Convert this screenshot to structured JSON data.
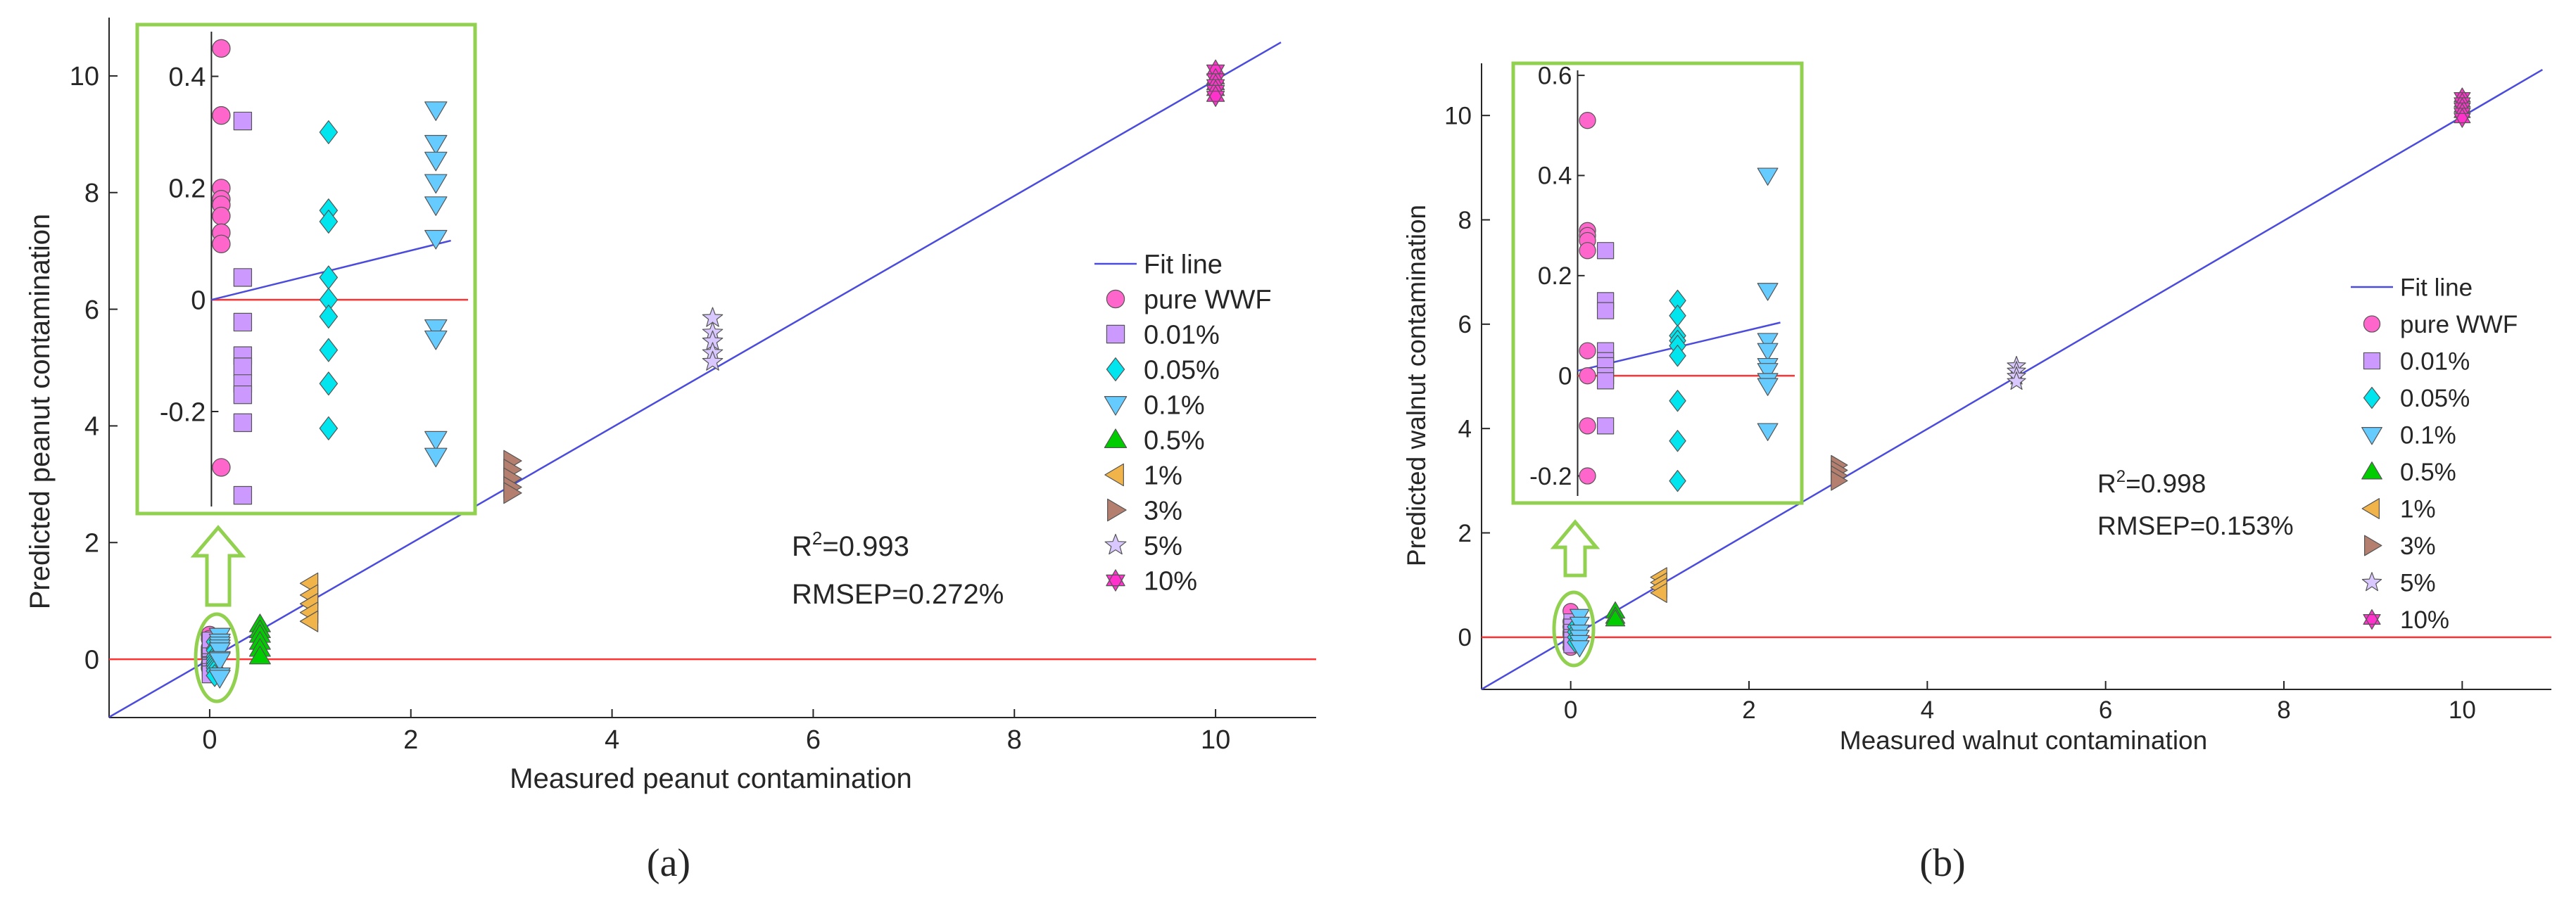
{
  "colors": {
    "fit_line": "#4b4bdc",
    "zero_line": "#ff3333",
    "inset_border": "#92d050",
    "highlight_ellipse": "#92d050",
    "axis": "#262626",
    "series": {
      "pure WWF": "#ff66cc",
      "0.01%": "#cc99ff",
      "0.05%": "#00e5ee",
      "0.1%": "#66ccff",
      "0.5%": "#00cc00",
      "1%": "#f0b44a",
      "3%": "#b47f6e",
      "5%": "#d9c7ff",
      "10%": "#ff33cc"
    }
  },
  "chart_data": [
    {
      "id": "a",
      "panel_label": "(a)",
      "type": "scatter",
      "xlabel": "Measured peanut contamination",
      "ylabel": "Predicted peanut contamination",
      "xlim": [
        -1,
        11
      ],
      "ylim": [
        -1,
        11
      ],
      "xticks": [
        "0",
        "2",
        "4",
        "6",
        "8",
        "10"
      ],
      "yticks": [
        "0",
        "2",
        "4",
        "6",
        "8",
        "10"
      ],
      "fit_line": {
        "slope": 0.993,
        "intercept": 0.0,
        "label": "Fit line"
      },
      "stats": {
        "r2_prefix": "R",
        "r2_sup": "2",
        "r2_value": "=0.993",
        "rmsep": "RMSEP=0.272%"
      },
      "legend": [
        "Fit line",
        "pure WWF",
        "0.01%",
        "0.05%",
        "0.1%",
        "0.5%",
        "1%",
        "3%",
        "5%",
        "10%"
      ],
      "series": [
        {
          "name": "pure WWF",
          "marker": "circle",
          "x": 0,
          "y": [
            0.42,
            0.35,
            0.2,
            0.17,
            0.15,
            0.12,
            0.08,
            0.05,
            -0.08,
            -0.15
          ]
        },
        {
          "name": "0.01%",
          "marker": "square",
          "x": 0.01,
          "y": [
            0.32,
            0.05,
            -0.05,
            -0.1,
            -0.12,
            -0.15,
            -0.22,
            -0.26
          ]
        },
        {
          "name": "0.05%",
          "marker": "diamond",
          "x": 0.05,
          "y": [
            0.3,
            0.18,
            0.15,
            0.05,
            0.0,
            -0.05,
            -0.1,
            -0.15,
            -0.2,
            -0.28
          ]
        },
        {
          "name": "0.1%",
          "marker": "triangle-down",
          "x": 0.1,
          "y": [
            0.4,
            0.3,
            0.25,
            0.2,
            0.15,
            0.0,
            -0.02,
            -0.28,
            -0.32
          ]
        },
        {
          "name": "0.5%",
          "marker": "triangle-up",
          "x": 0.5,
          "y": [
            0.6,
            0.5,
            0.42,
            0.3,
            0.18,
            0.05
          ]
        },
        {
          "name": "1%",
          "marker": "triangle-left",
          "x": 1,
          "y": [
            1.3,
            1.1,
            0.95,
            0.8,
            0.65
          ]
        },
        {
          "name": "3%",
          "marker": "triangle-right",
          "x": 3,
          "y": [
            3.4,
            3.25,
            3.1,
            2.95,
            2.85
          ]
        },
        {
          "name": "5%",
          "marker": "star",
          "x": 5,
          "y": [
            5.85,
            5.6,
            5.45,
            5.25,
            5.1
          ]
        },
        {
          "name": "10%",
          "marker": "hexagram",
          "x": 10,
          "y": [
            10.1,
            9.95,
            9.85,
            9.75,
            9.65
          ]
        }
      ],
      "inset": {
        "xlim": [
          -0.008,
          0.115
        ],
        "ylim": [
          -0.37,
          0.48
        ],
        "yticks": [
          "0.4",
          "0.2",
          "0",
          "-0.2"
        ],
        "yvalues": [
          0.4,
          0.2,
          0,
          -0.2
        ],
        "fit_line": {
          "slope": 0.99,
          "intercept": 0.0
        },
        "series": [
          {
            "name": "pure WWF",
            "marker": "circle",
            "x": 0.0,
            "y": [
              0.45,
              0.33,
              0.2,
              0.18,
              0.17,
              0.15,
              0.12,
              0.1,
              -0.3
            ]
          },
          {
            "name": "0.01%",
            "marker": "square",
            "x": 0.01,
            "y": [
              0.32,
              0.04,
              -0.04,
              -0.1,
              -0.12,
              -0.15,
              -0.17,
              -0.22,
              -0.35
            ]
          },
          {
            "name": "0.05%",
            "marker": "diamond",
            "x": 0.05,
            "y": [
              0.3,
              0.16,
              0.14,
              0.04,
              0.0,
              -0.03,
              -0.09,
              -0.15,
              -0.23
            ]
          },
          {
            "name": "0.1%",
            "marker": "triangle-down",
            "x": 0.1,
            "y": [
              0.34,
              0.28,
              0.25,
              0.21,
              0.17,
              0.11,
              -0.05,
              -0.07,
              -0.25,
              -0.28
            ]
          }
        ]
      }
    },
    {
      "id": "b",
      "panel_label": "(b)",
      "type": "scatter",
      "xlabel": "Measured walnut contamination",
      "ylabel": "Predicted walnut contamination",
      "xlim": [
        -1,
        11
      ],
      "ylim": [
        -1,
        11
      ],
      "xticks": [
        "0",
        "2",
        "4",
        "6",
        "8",
        "10"
      ],
      "yticks": [
        "0",
        "2",
        "4",
        "6",
        "8",
        "10"
      ],
      "fit_line": {
        "slope": 0.998,
        "intercept": 0.0,
        "label": "Fit line"
      },
      "stats": {
        "r2_prefix": "R",
        "r2_sup": "2",
        "r2_value": "=0.998",
        "rmsep": "RMSEP=0.153%"
      },
      "legend": [
        "Fit line",
        "pure WWF",
        "0.01%",
        "0.05%",
        "0.1%",
        "0.5%",
        "1%",
        "3%",
        "5%",
        "10%"
      ],
      "series": [
        {
          "name": "pure WWF",
          "marker": "circle",
          "x": 0,
          "y": [
            0.5,
            0.3,
            0.2,
            0.1,
            0.05,
            -0.1,
            -0.2
          ]
        },
        {
          "name": "0.01%",
          "marker": "square",
          "x": 0.01,
          "y": [
            0.3,
            0.2,
            0.1,
            0.0,
            -0.05,
            -0.15
          ]
        },
        {
          "name": "0.05%",
          "marker": "diamond",
          "x": 0.05,
          "y": [
            0.2,
            0.1,
            0.0,
            -0.1
          ]
        },
        {
          "name": "0.1%",
          "marker": "triangle-down",
          "x": 0.1,
          "y": [
            0.4,
            0.25,
            0.1,
            0.0,
            -0.1,
            -0.2
          ]
        },
        {
          "name": "0.5%",
          "marker": "triangle-up",
          "x": 0.5,
          "y": [
            0.5,
            0.4,
            0.35
          ]
        },
        {
          "name": "1%",
          "marker": "triangle-left",
          "x": 1,
          "y": [
            1.15,
            1.05,
            0.95,
            0.85
          ]
        },
        {
          "name": "3%",
          "marker": "triangle-right",
          "x": 3,
          "y": [
            3.3,
            3.2,
            3.1,
            3.0
          ]
        },
        {
          "name": "5%",
          "marker": "star",
          "x": 5,
          "y": [
            5.2,
            5.1,
            5.0,
            4.9
          ]
        },
        {
          "name": "10%",
          "marker": "hexagram",
          "x": 10,
          "y": [
            10.35,
            10.25,
            10.15,
            10.05,
            9.95
          ]
        }
      ],
      "inset": {
        "xlim": [
          -0.008,
          0.115
        ],
        "ylim": [
          -0.24,
          0.61
        ],
        "yticks": [
          "0.6",
          "0.4",
          "0.2",
          "0",
          "-0.2"
        ],
        "yvalues": [
          0.6,
          0.4,
          0.2,
          0,
          -0.2
        ],
        "fit_line": {
          "slope": 0.9,
          "intercept": 0.01
        },
        "series": [
          {
            "name": "pure WWF",
            "marker": "circle",
            "x": 0.0,
            "y": [
              0.51,
              0.29,
              0.28,
              0.27,
              0.25,
              0.05,
              0.0,
              -0.1,
              -0.2
            ]
          },
          {
            "name": "0.01%",
            "marker": "square",
            "x": 0.01,
            "y": [
              0.25,
              0.15,
              0.13,
              0.05,
              0.03,
              0.02,
              0.0,
              -0.01,
              -0.1
            ]
          },
          {
            "name": "0.05%",
            "marker": "diamond",
            "x": 0.05,
            "y": [
              0.15,
              0.12,
              0.08,
              0.07,
              0.06,
              0.04,
              -0.05,
              -0.13,
              -0.21
            ]
          },
          {
            "name": "0.1%",
            "marker": "triangle-down",
            "x": 0.1,
            "y": [
              0.4,
              0.17,
              0.07,
              0.05,
              0.02,
              0.01,
              -0.01,
              -0.02,
              -0.11
            ]
          }
        ]
      }
    }
  ]
}
